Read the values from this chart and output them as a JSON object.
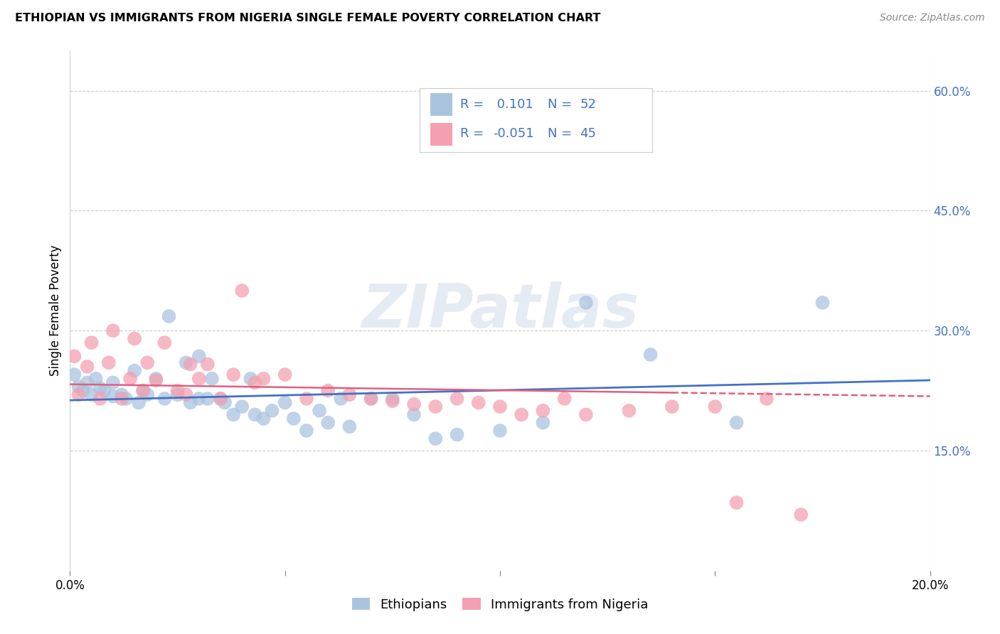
{
  "title": "ETHIOPIAN VS IMMIGRANTS FROM NIGERIA SINGLE FEMALE POVERTY CORRELATION CHART",
  "source": "Source: ZipAtlas.com",
  "ylabel_label": "Single Female Poverty",
  "xlim": [
    0.0,
    0.2
  ],
  "ylim": [
    0.0,
    0.65
  ],
  "xtick_pos": [
    0.0,
    0.05,
    0.1,
    0.15,
    0.2
  ],
  "xtick_labels": [
    "0.0%",
    "",
    "",
    "",
    "20.0%"
  ],
  "ytick_labels_right": [
    "15.0%",
    "30.0%",
    "45.0%",
    "60.0%"
  ],
  "ytick_positions_right": [
    0.15,
    0.3,
    0.45,
    0.6
  ],
  "grid_color": "#cccccc",
  "background_color": "#ffffff",
  "ethiopian_color": "#aac4e0",
  "nigeria_color": "#f4a0b0",
  "ethiopian_line_color": "#4472c4",
  "nigeria_line_color": "#e06080",
  "R_ethiopian": 0.101,
  "N_ethiopian": 52,
  "R_nigeria": -0.051,
  "N_nigeria": 45,
  "watermark": "ZIPatlas",
  "ethiopian_scatter_x": [
    0.001,
    0.002,
    0.003,
    0.004,
    0.005,
    0.006,
    0.007,
    0.008,
    0.01,
    0.01,
    0.012,
    0.013,
    0.015,
    0.016,
    0.017,
    0.018,
    0.02,
    0.022,
    0.023,
    0.025,
    0.027,
    0.028,
    0.03,
    0.03,
    0.032,
    0.033,
    0.035,
    0.036,
    0.038,
    0.04,
    0.042,
    0.043,
    0.045,
    0.047,
    0.05,
    0.052,
    0.055,
    0.058,
    0.06,
    0.063,
    0.065,
    0.07,
    0.075,
    0.08,
    0.085,
    0.09,
    0.1,
    0.11,
    0.12,
    0.135,
    0.155,
    0.175
  ],
  "ethiopian_scatter_y": [
    0.245,
    0.23,
    0.225,
    0.235,
    0.22,
    0.24,
    0.228,
    0.225,
    0.235,
    0.218,
    0.22,
    0.215,
    0.25,
    0.21,
    0.225,
    0.22,
    0.24,
    0.215,
    0.318,
    0.22,
    0.26,
    0.21,
    0.268,
    0.215,
    0.215,
    0.24,
    0.215,
    0.21,
    0.195,
    0.205,
    0.24,
    0.195,
    0.19,
    0.2,
    0.21,
    0.19,
    0.175,
    0.2,
    0.185,
    0.215,
    0.18,
    0.215,
    0.215,
    0.195,
    0.165,
    0.17,
    0.175,
    0.185,
    0.335,
    0.27,
    0.185,
    0.335
  ],
  "nigeria_scatter_x": [
    0.001,
    0.002,
    0.004,
    0.005,
    0.007,
    0.009,
    0.01,
    0.012,
    0.014,
    0.015,
    0.017,
    0.018,
    0.02,
    0.022,
    0.025,
    0.027,
    0.028,
    0.03,
    0.032,
    0.035,
    0.038,
    0.04,
    0.043,
    0.045,
    0.05,
    0.055,
    0.06,
    0.065,
    0.07,
    0.075,
    0.08,
    0.085,
    0.09,
    0.095,
    0.1,
    0.105,
    0.11,
    0.115,
    0.12,
    0.13,
    0.14,
    0.15,
    0.155,
    0.162,
    0.17
  ],
  "nigeria_scatter_y": [
    0.268,
    0.22,
    0.255,
    0.285,
    0.215,
    0.26,
    0.3,
    0.215,
    0.24,
    0.29,
    0.225,
    0.26,
    0.238,
    0.285,
    0.225,
    0.22,
    0.258,
    0.24,
    0.258,
    0.215,
    0.245,
    0.35,
    0.235,
    0.24,
    0.245,
    0.215,
    0.225,
    0.22,
    0.215,
    0.212,
    0.208,
    0.205,
    0.215,
    0.21,
    0.205,
    0.195,
    0.2,
    0.215,
    0.195,
    0.2,
    0.205,
    0.205,
    0.085,
    0.215,
    0.07
  ]
}
